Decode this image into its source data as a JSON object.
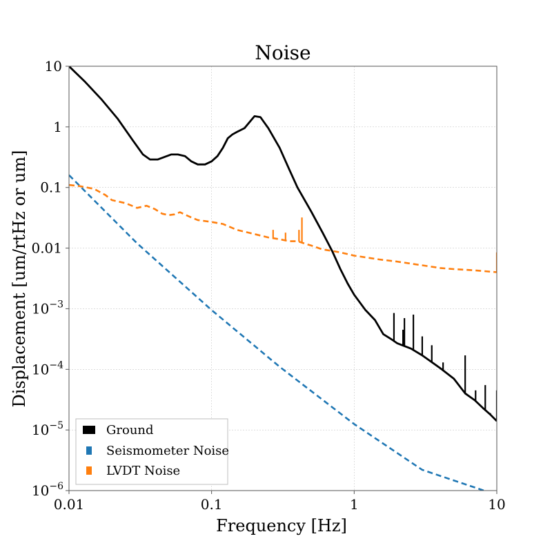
{
  "chart_data": {
    "type": "line",
    "title": "Noise",
    "xlabel": "Frequency [Hz]",
    "ylabel": "Displacement [um/rtHz or um]",
    "xscale": "log",
    "yscale": "log",
    "xlim": [
      0.01,
      10
    ],
    "ylim": [
      1e-06,
      10
    ],
    "grid": true,
    "legend_position": "lower-left",
    "x_ticks": [
      {
        "value": 0.01,
        "label": "0.01"
      },
      {
        "value": 0.1,
        "label": "0.1"
      },
      {
        "value": 1,
        "label": "1"
      },
      {
        "value": 10,
        "label": "10"
      }
    ],
    "y_ticks": [
      {
        "value": 10,
        "label": "10"
      },
      {
        "value": 1,
        "label": "1"
      },
      {
        "value": 0.1,
        "label": "0.1"
      },
      {
        "value": 0.01,
        "label": "0.01"
      },
      {
        "value": 0.001,
        "label": "10",
        "exp": "−3"
      },
      {
        "value": 0.0001,
        "label": "10",
        "exp": "−4"
      },
      {
        "value": 1e-05,
        "label": "10",
        "exp": "−5"
      },
      {
        "value": 1e-06,
        "label": "10",
        "exp": "−6"
      }
    ],
    "series": [
      {
        "name": "Ground",
        "color": "#000000",
        "style": "solid",
        "x": [
          0.01,
          0.013,
          0.017,
          0.022,
          0.028,
          0.033,
          0.037,
          0.042,
          0.047,
          0.052,
          0.058,
          0.065,
          0.072,
          0.08,
          0.09,
          0.1,
          0.11,
          0.12,
          0.13,
          0.14,
          0.15,
          0.17,
          0.19,
          0.2,
          0.22,
          0.25,
          0.3,
          0.35,
          0.4,
          0.5,
          0.6,
          0.7,
          0.8,
          0.9,
          1.0,
          1.2,
          1.4,
          1.6,
          1.8,
          2.0,
          2.5,
          3.0,
          4.0,
          5.0,
          6.0,
          7.0,
          8.0,
          9.0,
          10.0
        ],
        "y": [
          10,
          5.5,
          2.8,
          1.35,
          0.6,
          0.35,
          0.29,
          0.29,
          0.32,
          0.35,
          0.35,
          0.33,
          0.27,
          0.24,
          0.24,
          0.27,
          0.33,
          0.45,
          0.65,
          0.75,
          0.82,
          0.95,
          1.3,
          1.5,
          1.45,
          0.95,
          0.45,
          0.2,
          0.1,
          0.04,
          0.018,
          0.009,
          0.0045,
          0.0026,
          0.0017,
          0.00095,
          0.00065,
          0.00038,
          0.00032,
          0.00027,
          0.00022,
          0.00017,
          0.000105,
          7e-05,
          4e-05,
          3.1e-05,
          2.3e-05,
          1.8e-05,
          1.4e-05
        ],
        "spikes": [
          {
            "x": 1.9,
            "y": 0.00085
          },
          {
            "x": 2.25,
            "y": 0.0007
          },
          {
            "x": 2.6,
            "y": 0.0008
          },
          {
            "x": 2.2,
            "y": 0.00045
          },
          {
            "x": 3.0,
            "y": 0.00035
          },
          {
            "x": 3.5,
            "y": 0.00025
          },
          {
            "x": 4.2,
            "y": 0.00013
          },
          {
            "x": 6.0,
            "y": 0.00017
          },
          {
            "x": 7.1,
            "y": 4.5e-05
          },
          {
            "x": 8.3,
            "y": 5.5e-05
          },
          {
            "x": 9.0,
            "y": 1.9e-05
          },
          {
            "x": 10.0,
            "y": 4.5e-05
          }
        ]
      },
      {
        "name": "Seismometer Noise",
        "color": "#1f77b4",
        "style": "dashed",
        "x": [
          0.01,
          0.03,
          0.1,
          0.3,
          1.0,
          3.0,
          10.0
        ],
        "y": [
          0.16,
          0.012,
          0.00095,
          0.00011,
          1.25e-05,
          2.2e-06,
          8.5e-07
        ]
      },
      {
        "name": "LVDT Noise",
        "color": "#ff7f0e",
        "style": "dashed",
        "x": [
          0.01,
          0.012,
          0.015,
          0.018,
          0.02,
          0.025,
          0.03,
          0.035,
          0.04,
          0.045,
          0.05,
          0.055,
          0.06,
          0.07,
          0.08,
          0.1,
          0.12,
          0.15,
          0.2,
          0.25,
          0.3,
          0.35,
          0.4,
          0.5,
          0.6,
          0.7,
          0.8,
          1.0,
          1.5,
          2.0,
          3.0,
          4.0,
          5.0,
          7.0,
          10.0
        ],
        "y": [
          0.11,
          0.105,
          0.095,
          0.075,
          0.062,
          0.055,
          0.046,
          0.05,
          0.044,
          0.037,
          0.035,
          0.036,
          0.039,
          0.033,
          0.029,
          0.027,
          0.025,
          0.02,
          0.017,
          0.015,
          0.014,
          0.013,
          0.013,
          0.011,
          0.0095,
          0.009,
          0.0085,
          0.0075,
          0.0065,
          0.006,
          0.0052,
          0.0047,
          0.0045,
          0.0043,
          0.004
        ],
        "spikes": [
          {
            "x": 0.43,
            "y": 0.032
          },
          {
            "x": 0.41,
            "y": 0.02
          },
          {
            "x": 0.27,
            "y": 0.02
          },
          {
            "x": 0.33,
            "y": 0.018
          },
          {
            "x": 10.0,
            "y": 0.0085
          }
        ]
      }
    ]
  }
}
